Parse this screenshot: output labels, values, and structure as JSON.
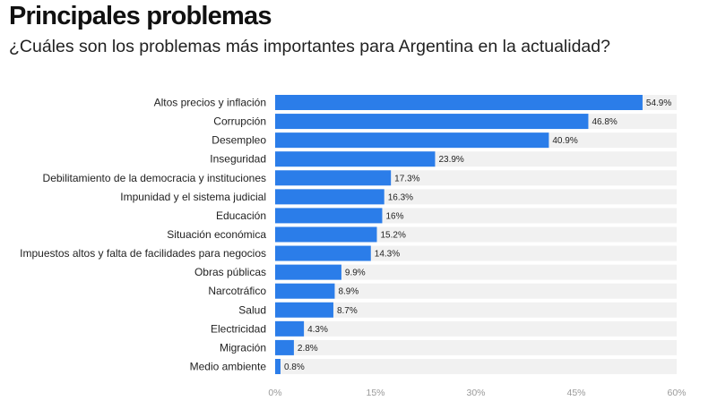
{
  "header": {
    "title": "Principales problemas",
    "subtitle": "¿Cuáles son los problemas más importantes para Argentina en la actualidad?"
  },
  "colors": {
    "bar": "#2b7de9",
    "track": "#f1f1f1",
    "text": "#222222",
    "tick": "#9a9a9a"
  },
  "chart_data": {
    "type": "bar",
    "orientation": "horizontal",
    "categories": [
      "Altos precios y inflación",
      "Corrupción",
      "Desempleo",
      "Inseguridad",
      "Debilitamiento de la democracia y instituciones",
      "Impunidad y el sistema judicial",
      "Educación",
      "Situación económica",
      "Impuestos altos y falta de facilidades para negocios",
      "Obras públicas",
      "Narcotráfico",
      "Salud",
      "Electricidad",
      "Migración",
      "Medio ambiente"
    ],
    "values": [
      54.9,
      46.8,
      40.9,
      23.9,
      17.3,
      16.3,
      16,
      15.2,
      14.3,
      9.9,
      8.9,
      8.7,
      4.3,
      2.8,
      0.8
    ],
    "value_labels": [
      "54.9%",
      "46.8%",
      "40.9%",
      "23.9%",
      "17.3%",
      "16.3%",
      "16%",
      "15.2%",
      "14.3%",
      "9.9%",
      "8.9%",
      "8.7%",
      "4.3%",
      "2.8%",
      "0.8%"
    ],
    "xlim": [
      0,
      60
    ],
    "xticks": [
      0,
      15,
      30,
      45,
      60
    ],
    "xtick_labels": [
      "0%",
      "15%",
      "30%",
      "45%",
      "60%"
    ],
    "grid": false
  }
}
